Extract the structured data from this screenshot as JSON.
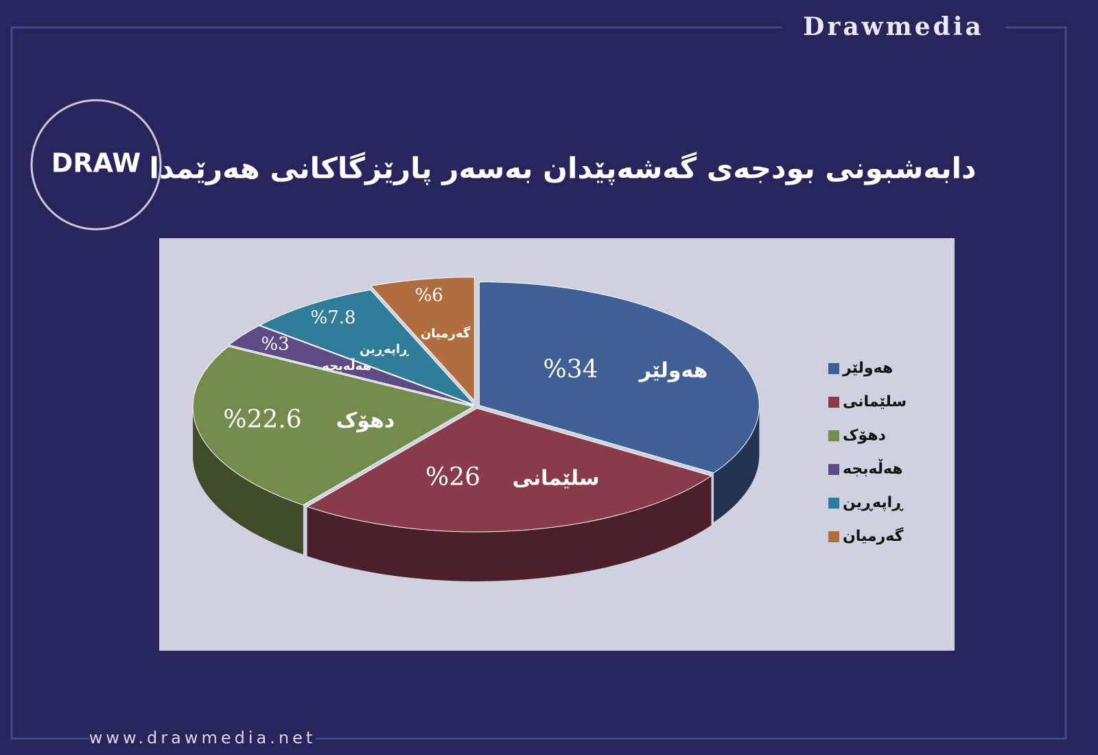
{
  "header": {
    "brand": "Drawmedia",
    "logo_text": "DRAW"
  },
  "footer": {
    "url": "www.drawmedia.net"
  },
  "chart_data": {
    "type": "pie",
    "title": "دابەشبونی بودجەی گەشەپێدان بەسەر پارێزگاکانی هەرێمدا",
    "categories": [
      "هەولێر",
      "سلێمانی",
      "دهۆک",
      "هەڵەبجە",
      "ڕاپەڕین",
      "گەرمیان"
    ],
    "values": [
      34,
      26,
      22.6,
      3,
      7.8,
      6
    ],
    "value_labels": [
      "%34",
      "%26",
      "%22.6",
      "%3",
      "%7.8",
      "%6"
    ],
    "colors": [
      "#3f5f95",
      "#8a3b49",
      "#738b4d",
      "#5e4a84",
      "#2f7d99",
      "#b06e40"
    ]
  }
}
